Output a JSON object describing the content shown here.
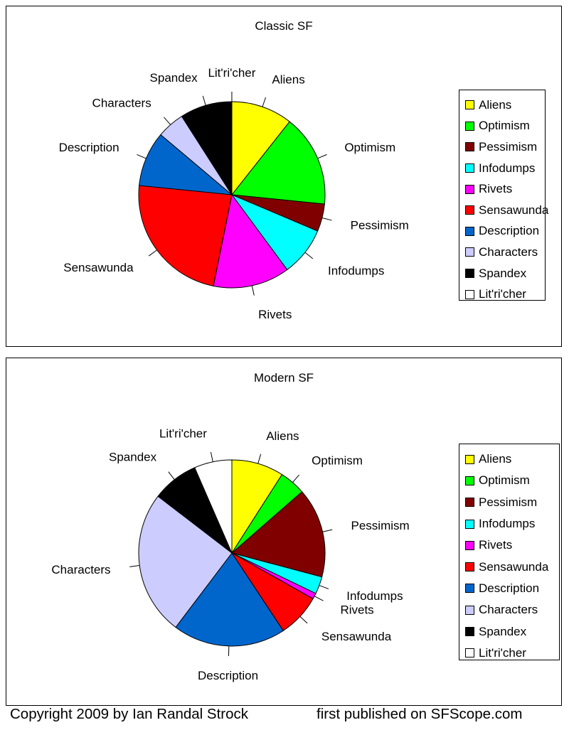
{
  "colors": {
    "Aliens": "#ffff00",
    "Optimism": "#00ff00",
    "Pessimism": "#800000",
    "Infodumps": "#00ffff",
    "Rivets": "#ff00ff",
    "Sensawunda": "#ff0000",
    "Description": "#0066cc",
    "Characters": "#ccccff",
    "Spandex": "#000000",
    "Lit'ri'cher": "#ffffff"
  },
  "chart_data": [
    {
      "type": "pie",
      "title": "Classic SF",
      "legend": "right",
      "slices": [
        {
          "label": "Aliens",
          "value": 10
        },
        {
          "label": "Optimism",
          "value": 15
        },
        {
          "label": "Pessimism",
          "value": 4.5
        },
        {
          "label": "Infodumps",
          "value": 8
        },
        {
          "label": "Rivets",
          "value": 12.5
        },
        {
          "label": "Sensawunda",
          "value": 22
        },
        {
          "label": "Description",
          "value": 9
        },
        {
          "label": "Characters",
          "value": 4.5
        },
        {
          "label": "Spandex",
          "value": 8.5
        },
        {
          "label": "Lit'ri'cher",
          "value": 0.01
        }
      ]
    },
    {
      "type": "pie",
      "title": "Modern SF",
      "legend": "right",
      "slices": [
        {
          "label": "Aliens",
          "value": 9
        },
        {
          "label": "Optimism",
          "value": 4.5
        },
        {
          "label": "Pessimism",
          "value": 15.5
        },
        {
          "label": "Infodumps",
          "value": 3
        },
        {
          "label": "Rivets",
          "value": 1
        },
        {
          "label": "Sensawunda",
          "value": 7.5
        },
        {
          "label": "Description",
          "value": 19.5
        },
        {
          "label": "Characters",
          "value": 25
        },
        {
          "label": "Spandex",
          "value": 8
        },
        {
          "label": "Lit'ri'cher",
          "value": 6.5
        }
      ]
    }
  ],
  "footer": {
    "copyright": "Copyright 2009 by Ian Randal Strock",
    "published": "first published on SFScope.com"
  }
}
